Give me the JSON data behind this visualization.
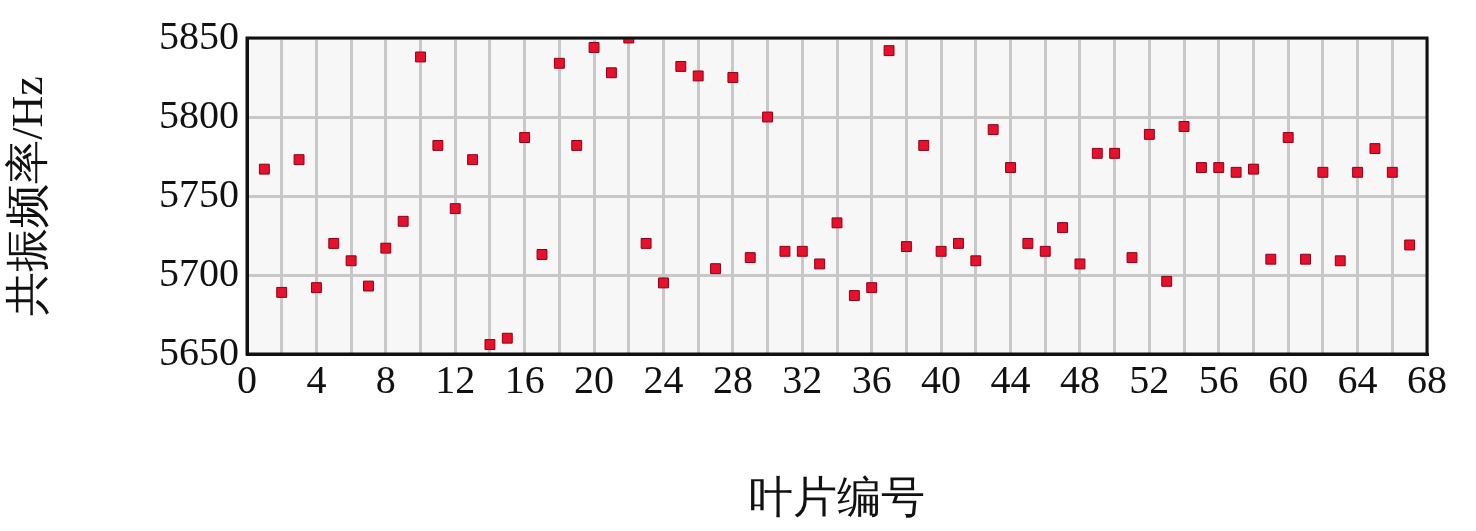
{
  "chart_data": {
    "type": "scatter",
    "xlabel": "叶片编号",
    "ylabel": "共振频率/Hz",
    "x": [
      1,
      2,
      3,
      4,
      5,
      6,
      7,
      8,
      9,
      10,
      11,
      12,
      13,
      14,
      15,
      16,
      17,
      18,
      19,
      20,
      21,
      22,
      23,
      24,
      25,
      26,
      27,
      28,
      29,
      30,
      31,
      32,
      33,
      34,
      35,
      36,
      37,
      38,
      39,
      40,
      41,
      42,
      43,
      44,
      45,
      46,
      47,
      48,
      49,
      50,
      51,
      52,
      53,
      54,
      55,
      56,
      57,
      58,
      59,
      60,
      61,
      62,
      63,
      64,
      65,
      66,
      67
    ],
    "series": [
      {
        "color": "#e8102a",
        "values": [
          5767,
          5689,
          5773,
          5692,
          5720,
          5709,
          5693,
          5717,
          5734,
          5838,
          5782,
          5742,
          5773,
          5656,
          5660,
          5787,
          5713,
          5834,
          5782,
          5844,
          5828,
          5850,
          5720,
          5695,
          5832,
          5826,
          5704,
          5825,
          5711,
          5800,
          5715,
          5715,
          5707,
          5733,
          5687,
          5692,
          5842,
          5718,
          5782,
          5715,
          5720,
          5709,
          5792,
          5768,
          5720,
          5715,
          5730,
          5707,
          5777,
          5777,
          5711,
          5789,
          5696,
          5794,
          5768,
          5768,
          5765,
          5767,
          5710,
          5787,
          5710,
          5765,
          5709,
          5765,
          5780,
          5765,
          5719
        ]
      }
    ],
    "xlim": [
      0,
      68
    ],
    "xticks": [
      0,
      {
        "value": 2,
        "label": null
      },
      4,
      {
        "value": 6,
        "label": null
      },
      8,
      {
        "value": 10,
        "label": null
      },
      12,
      {
        "value": 14,
        "label": null
      },
      16,
      {
        "value": 18,
        "label": null
      },
      20,
      {
        "value": 22,
        "label": null
      },
      24,
      {
        "value": 26,
        "label": null
      },
      28,
      {
        "value": 30,
        "label": null
      },
      32,
      {
        "value": 34,
        "label": null
      },
      36,
      {
        "value": 38,
        "label": null
      },
      40,
      {
        "value": 42,
        "label": null
      },
      44,
      {
        "value": 46,
        "label": null
      },
      48,
      {
        "value": 50,
        "label": null
      },
      52,
      {
        "value": 54,
        "label": null
      },
      56,
      {
        "value": 58,
        "label": null
      },
      60,
      {
        "value": 62,
        "label": null
      },
      64,
      {
        "value": 66,
        "label": null
      },
      68
    ],
    "ylim": [
      5650,
      5850
    ],
    "yticks": [
      5650,
      5700,
      5750,
      5800,
      5850
    ],
    "grid": true,
    "legend": false,
    "marker": "square"
  }
}
